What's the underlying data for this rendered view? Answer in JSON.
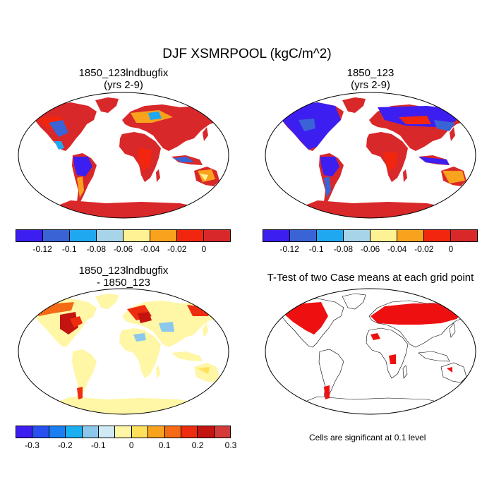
{
  "title": "DJF XSMRPOOL (kgC/m^2)",
  "panels": [
    {
      "title1": "1850_123lndbugfix",
      "title2": "(yrs 2-9)"
    },
    {
      "title1": "1850_123",
      "title2": "(yrs 2-9)"
    },
    {
      "title1": "1850_123lndbugfix",
      "title2": "- 1850_123"
    },
    {
      "title1": "T-Test of two Case means at each grid point"
    }
  ],
  "colorbar_top": {
    "colors": [
      "#3d1ef0",
      "#3a64d6",
      "#1fa8f0",
      "#a8d4ea",
      "#fff295",
      "#f8a21e",
      "#f2260e",
      "#d9282a"
    ],
    "labels": [
      "-0.12",
      "-0.1",
      "-0.08",
      "-0.06",
      "-0.04",
      "-0.02",
      "0"
    ]
  },
  "colorbar_diff": {
    "colors": [
      "#3d1ef0",
      "#2a4ff0",
      "#1a7ff0",
      "#1ab0f0",
      "#8cc8ec",
      "#cfe9f5",
      "#fff6a6",
      "#ffe05a",
      "#f8a21e",
      "#f56a14",
      "#ee2c10",
      "#c41410",
      "#d33a3a"
    ],
    "labels": [
      "-0.3",
      "-0.2",
      "-0.1",
      "0",
      "0.1",
      "0.2",
      "0.3"
    ]
  },
  "note": "Cells are significant at 0.1 level"
}
